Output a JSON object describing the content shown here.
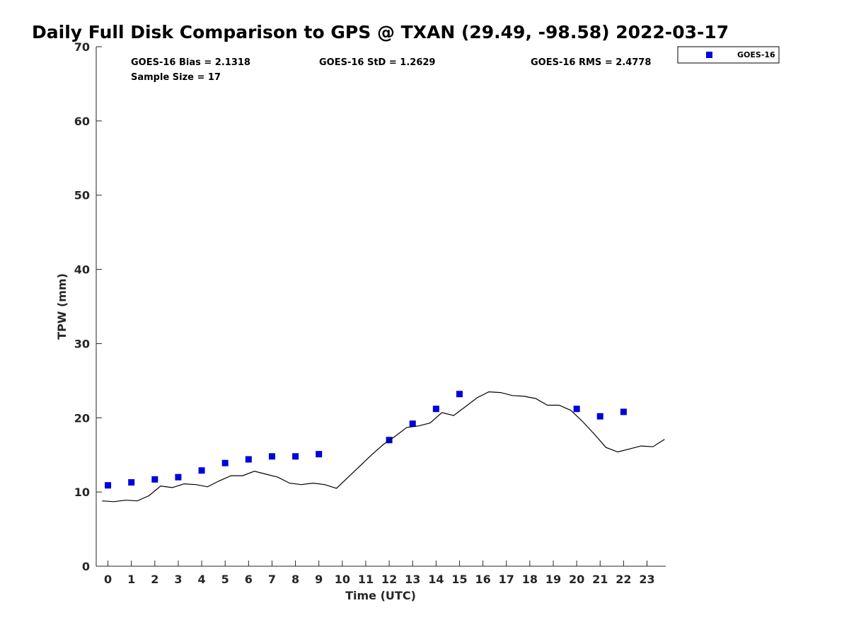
{
  "chart_data": {
    "type": "scatter",
    "title": "Daily Full Disk Comparison to GPS @ TXAN (29.49, -98.58) 2022-03-17",
    "xlabel": "Time (UTC)",
    "ylabel": "TPW (mm)",
    "xlim": [
      -0.5,
      23.8
    ],
    "ylim": [
      0,
      70
    ],
    "x_ticks": [
      0,
      1,
      2,
      3,
      4,
      5,
      6,
      7,
      8,
      9,
      10,
      11,
      12,
      13,
      14,
      15,
      16,
      17,
      18,
      19,
      20,
      21,
      22,
      23
    ],
    "x_tick_labels": [
      "0",
      "1",
      "2",
      "3",
      "4",
      "5",
      "6",
      "7",
      "8",
      "9",
      "10",
      "11",
      "12",
      "13",
      "14",
      "15",
      "16",
      "17",
      "18",
      "19",
      "20",
      "21",
      "22",
      "23"
    ],
    "y_ticks": [
      0,
      10,
      20,
      30,
      40,
      50,
      60,
      70
    ],
    "y_tick_labels": [
      "0",
      "10",
      "20",
      "30",
      "40",
      "50",
      "60",
      "70"
    ],
    "grid": false,
    "legend_position": "top-right, outside plot",
    "stats": {
      "bias": "GOES-16 Bias = 2.1318",
      "std": "GOES-16 StD = 1.2629",
      "rms": "GOES-16 RMS = 2.4778",
      "sample": "Sample Size = 17"
    },
    "series": [
      {
        "name": "GOES-16",
        "kind": "scatter",
        "marker": "square",
        "color": "#0000dd",
        "x": [
          0,
          1,
          2,
          3,
          4,
          5,
          6,
          7,
          8,
          9,
          12,
          13,
          14,
          15,
          20,
          21,
          22
        ],
        "y": [
          10.9,
          11.3,
          11.7,
          12.0,
          12.9,
          13.9,
          14.4,
          14.8,
          14.8,
          15.1,
          17.0,
          19.2,
          21.2,
          23.2,
          21.2,
          20.2,
          20.8
        ]
      },
      {
        "kind": "line",
        "color": "#000000",
        "x": [
          -0.25,
          0.25,
          0.75,
          1.25,
          1.75,
          2.25,
          2.75,
          3.25,
          3.75,
          4.25,
          4.75,
          5.25,
          5.75,
          6.25,
          6.75,
          7.25,
          7.75,
          8.25,
          8.75,
          9.25,
          9.75,
          10.25,
          10.75,
          11.25,
          11.75,
          12.25,
          12.75,
          13.25,
          13.75,
          14.25,
          14.75,
          15.25,
          15.75,
          16.25,
          16.75,
          17.25,
          17.75,
          18.25,
          18.75,
          19.25,
          19.75,
          20.25,
          20.75,
          21.25,
          21.75,
          22.25,
          22.75,
          23.25,
          23.75
        ],
        "y": [
          8.8,
          8.7,
          8.9,
          8.8,
          9.5,
          10.8,
          10.6,
          11.1,
          11.0,
          10.7,
          11.5,
          12.2,
          12.2,
          12.8,
          12.4,
          12.0,
          11.2,
          11.0,
          11.2,
          11.0,
          10.5,
          12.0,
          13.5,
          15.0,
          16.4,
          17.5,
          18.7,
          18.9,
          19.3,
          20.7,
          20.3,
          21.5,
          22.7,
          23.5,
          23.4,
          23.0,
          22.9,
          22.6,
          21.7,
          21.7,
          21.0,
          19.5,
          17.8,
          16.0,
          15.4,
          15.8,
          16.2,
          16.1,
          17.1
        ]
      }
    ]
  }
}
